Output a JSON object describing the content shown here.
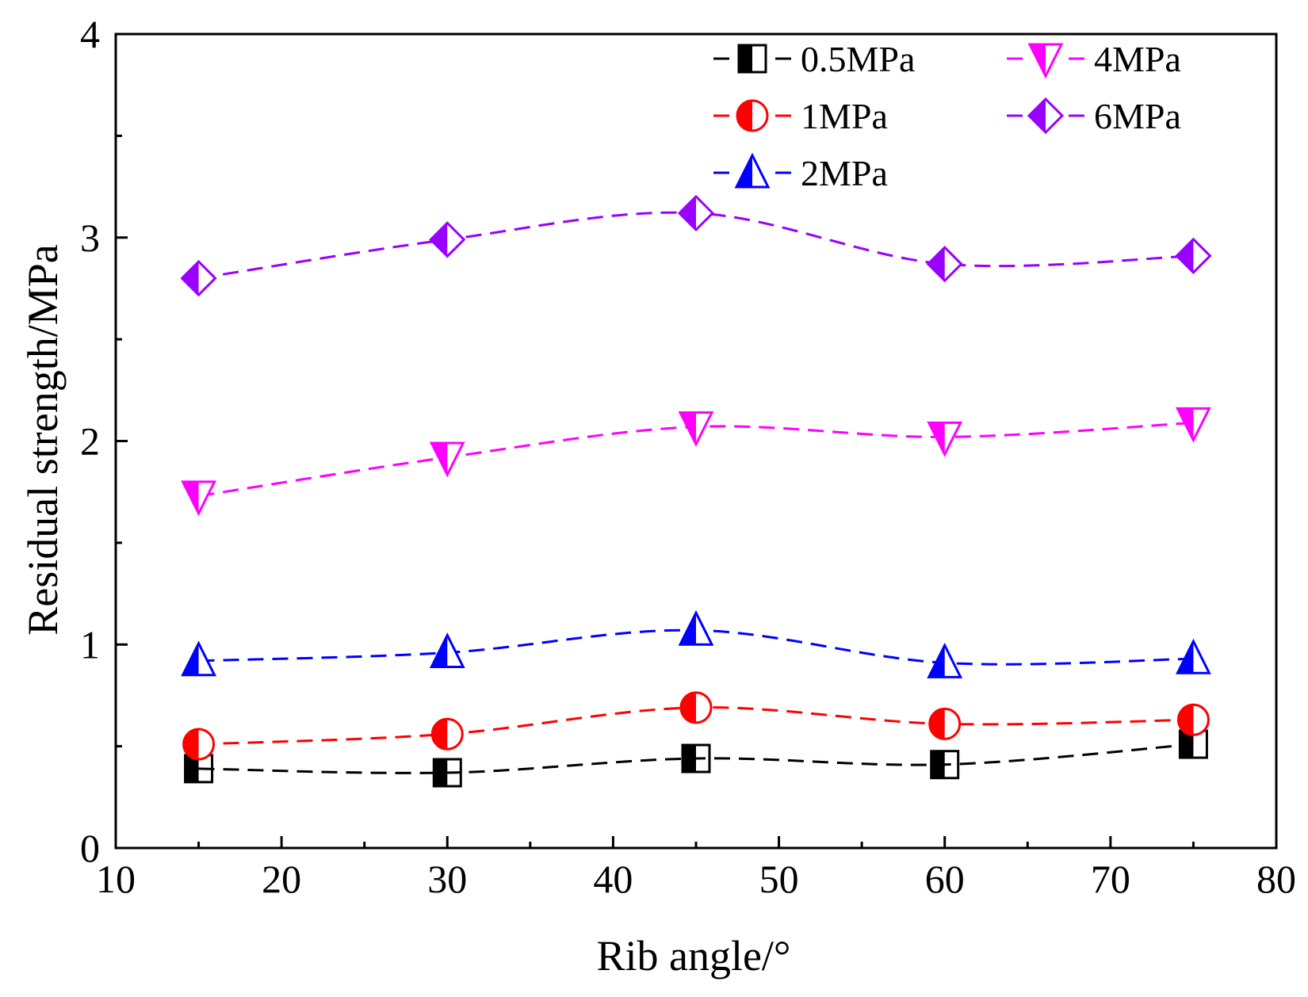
{
  "chart_data": {
    "type": "line",
    "title": "",
    "xlabel": "Rib angle/°",
    "ylabel": "Residual strength/MPa",
    "xlim": [
      10,
      80
    ],
    "ylim": [
      0,
      4
    ],
    "x_ticks": [
      10,
      20,
      30,
      40,
      50,
      60,
      70,
      80
    ],
    "y_ticks": [
      0,
      1,
      2,
      3,
      4
    ],
    "grid": false,
    "legend_position": "top-right",
    "x": [
      15,
      30,
      45,
      60,
      75
    ],
    "series": [
      {
        "name": "0.5MPa",
        "color": "#000000",
        "marker": "square",
        "values": [
          0.39,
          0.37,
          0.44,
          0.41,
          0.51
        ]
      },
      {
        "name": "1MPa",
        "color": "#ff0000",
        "marker": "circle",
        "values": [
          0.51,
          0.56,
          0.69,
          0.61,
          0.63
        ]
      },
      {
        "name": "2MPa",
        "color": "#0000ff",
        "marker": "triangle-up",
        "values": [
          0.92,
          0.96,
          1.07,
          0.91,
          0.93
        ]
      },
      {
        "name": "4MPa",
        "color": "#ff00ff",
        "marker": "triangle-down",
        "values": [
          1.73,
          1.92,
          2.07,
          2.02,
          2.09
        ]
      },
      {
        "name": "6MPa",
        "color": "#9900ff",
        "marker": "diamond",
        "values": [
          2.8,
          2.99,
          3.12,
          2.87,
          2.91
        ]
      }
    ]
  }
}
